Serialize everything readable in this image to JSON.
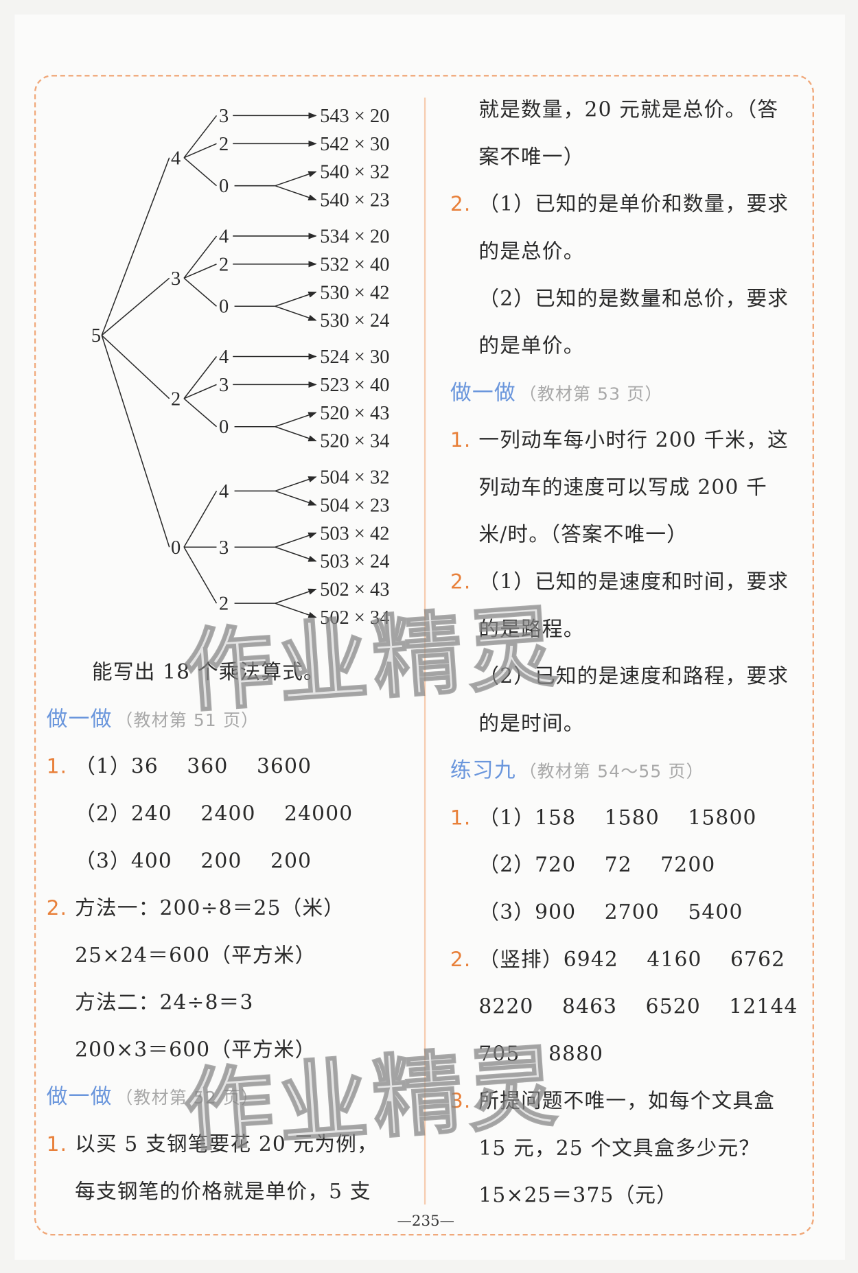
{
  "colors": {
    "number": "#e8803a",
    "heading": "#6a96dc",
    "subheading": "#a8a8a8",
    "frame": "#f0a87a"
  },
  "tree": {
    "root": "5",
    "branches": [
      {
        "label": "4",
        "children": [
          {
            "label": "3",
            "results": [
              "543 × 20"
            ]
          },
          {
            "label": "2",
            "results": [
              "542 × 30"
            ]
          },
          {
            "label": "0",
            "results": [
              "540 × 32",
              "540 × 23"
            ]
          }
        ]
      },
      {
        "label": "3",
        "children": [
          {
            "label": "4",
            "results": [
              "534 × 20"
            ]
          },
          {
            "label": "2",
            "results": [
              "532 × 40"
            ]
          },
          {
            "label": "0",
            "results": [
              "530 × 42",
              "530 × 24"
            ]
          }
        ]
      },
      {
        "label": "2",
        "children": [
          {
            "label": "4",
            "results": [
              "524 × 30"
            ]
          },
          {
            "label": "3",
            "results": [
              "523 × 40"
            ]
          },
          {
            "label": "0",
            "results": [
              "520 × 43",
              "520 × 34"
            ]
          }
        ]
      },
      {
        "label": "0",
        "children": [
          {
            "label": "4",
            "results": [
              "504 × 32",
              "504 × 23"
            ]
          },
          {
            "label": "3",
            "results": [
              "503 × 42",
              "503 × 24"
            ]
          },
          {
            "label": "2",
            "results": [
              "502 × 43",
              "502 × 34"
            ]
          }
        ]
      }
    ]
  },
  "left_column": [
    {
      "text": "能写出 18 个乘法算式。",
      "indent": true
    },
    {
      "heading": "做一做",
      "sub": "（教材第 51 页）"
    },
    {
      "num": "1.",
      "text": "（1）36　 360　 3600"
    },
    {
      "text": "（2）240　 2400　 24000"
    },
    {
      "text": "（3）400　 200　 200"
    },
    {
      "num": "2.",
      "text": "方法一：200÷8＝25（米）"
    },
    {
      "text": "25×24＝600（平方米）"
    },
    {
      "text": "方法二：24÷8＝3"
    },
    {
      "text": "200×3＝600（平方米）"
    },
    {
      "heading": "做一做",
      "sub": "（教材第 52 页）"
    },
    {
      "num": "1.",
      "text": "以买 5 支钢笔要花 20 元为例，"
    },
    {
      "text": "每支钢笔的价格就是单价，5 支"
    }
  ],
  "right_column": [
    {
      "text": "就是数量，20 元就是总价。（答"
    },
    {
      "text": "案不唯一）"
    },
    {
      "num": "2.",
      "text": "（1）已知的是单价和数量，要求"
    },
    {
      "text": "的是总价。"
    },
    {
      "text": "（2）已知的是数量和总价，要求"
    },
    {
      "text": "的是单价。"
    },
    {
      "heading": "做一做",
      "sub": "（教材第 53 页）"
    },
    {
      "num": "1.",
      "text": "一列动车每小时行 200 千米，这"
    },
    {
      "text": "列动车的速度可以写成 200 千"
    },
    {
      "text": "米/时。（答案不唯一）"
    },
    {
      "num": "2.",
      "text": "（1）已知的是速度和时间，要求"
    },
    {
      "text": "的是路程。"
    },
    {
      "text": "（2）已知的是速度和路程，要求"
    },
    {
      "text": "的是时间。"
    },
    {
      "heading": "练习九",
      "sub": "（教材第 54～55 页）"
    },
    {
      "num": "1.",
      "text": "（1）158　 1580　 15800"
    },
    {
      "text": "（2）720　 72　 7200"
    },
    {
      "text": "（3）900　 2700　 5400"
    },
    {
      "num": "2.",
      "text": "（竖排）6942　 4160　 6762"
    },
    {
      "text": "8220　 8463　 6520　 12144"
    },
    {
      "text": "705　 8880"
    },
    {
      "num": "3.",
      "text": "所提问题不唯一，如每个文具盒"
    },
    {
      "text": "15 元，25 个文具盒多少元？"
    },
    {
      "text": "15×25＝375（元）"
    }
  ],
  "page_number": "—235—",
  "watermark": "作业精灵"
}
